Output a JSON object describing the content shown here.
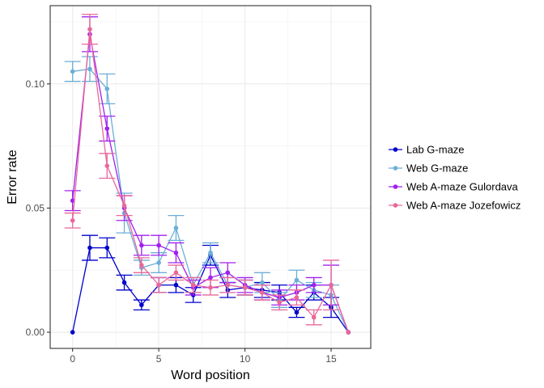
{
  "chart_data": {
    "type": "line",
    "title": "",
    "xlabel": "Word position",
    "ylabel": "Error rate",
    "xlim": [
      -1.3,
      17.3
    ],
    "ylim": [
      -0.0065,
      0.1315
    ],
    "x_ticks": [
      0,
      5,
      10,
      15
    ],
    "x_tick_labels": [
      "0",
      "5",
      "10",
      "15"
    ],
    "y_ticks": [
      0.0,
      0.05,
      0.1
    ],
    "y_tick_labels": [
      "0.00",
      "0.05",
      "0.10"
    ],
    "grid": true,
    "legend_position": "right",
    "x": [
      0,
      1,
      2,
      3,
      4,
      5,
      6,
      7,
      8,
      9,
      10,
      11,
      12,
      13,
      14,
      15,
      16
    ],
    "series": [
      {
        "name": "Lab G-maze",
        "color": "#0000cc",
        "values": [
          0.0,
          0.034,
          0.034,
          0.02,
          0.011,
          0.019,
          0.019,
          0.015,
          0.031,
          0.017,
          0.018,
          0.017,
          0.016,
          0.008,
          0.016,
          0.01,
          0.0
        ],
        "errors": [
          0.0,
          0.005,
          0.004,
          0.003,
          0.002,
          0.003,
          0.003,
          0.003,
          0.004,
          0.003,
          0.003,
          0.003,
          0.003,
          0.002,
          0.003,
          0.004,
          0.0
        ]
      },
      {
        "name": "Web G-maze",
        "color": "#6baed6",
        "values": [
          0.105,
          0.106,
          0.098,
          0.048,
          0.026,
          0.028,
          0.042,
          0.019,
          0.032,
          0.019,
          0.018,
          0.02,
          0.013,
          0.021,
          0.017,
          0.015,
          0.0
        ],
        "errors": [
          0.004,
          0.005,
          0.006,
          0.008,
          0.003,
          0.004,
          0.005,
          0.003,
          0.004,
          0.003,
          0.003,
          0.004,
          0.003,
          0.004,
          0.003,
          0.004,
          0.0
        ]
      },
      {
        "name": "Web A-maze Gulordava",
        "color": "#a020f0",
        "values": [
          0.053,
          0.12,
          0.082,
          0.05,
          0.035,
          0.035,
          0.032,
          0.018,
          0.022,
          0.024,
          0.019,
          0.016,
          0.014,
          0.016,
          0.019,
          0.019,
          0.0
        ],
        "errors": [
          0.004,
          0.007,
          0.005,
          0.005,
          0.004,
          0.004,
          0.004,
          0.003,
          0.004,
          0.004,
          0.003,
          0.003,
          0.003,
          0.003,
          0.003,
          0.008,
          0.0
        ]
      },
      {
        "name": "Web A-maze Jozefowicz",
        "color": "#e8689a",
        "values": [
          0.045,
          0.122,
          0.067,
          0.051,
          0.027,
          0.019,
          0.024,
          0.019,
          0.018,
          0.019,
          0.018,
          0.016,
          0.012,
          0.014,
          0.006,
          0.019,
          0.0
        ],
        "errors": [
          0.003,
          0.006,
          0.005,
          0.004,
          0.003,
          0.003,
          0.003,
          0.003,
          0.003,
          0.003,
          0.003,
          0.003,
          0.003,
          0.003,
          0.003,
          0.01,
          0.0
        ]
      }
    ]
  }
}
